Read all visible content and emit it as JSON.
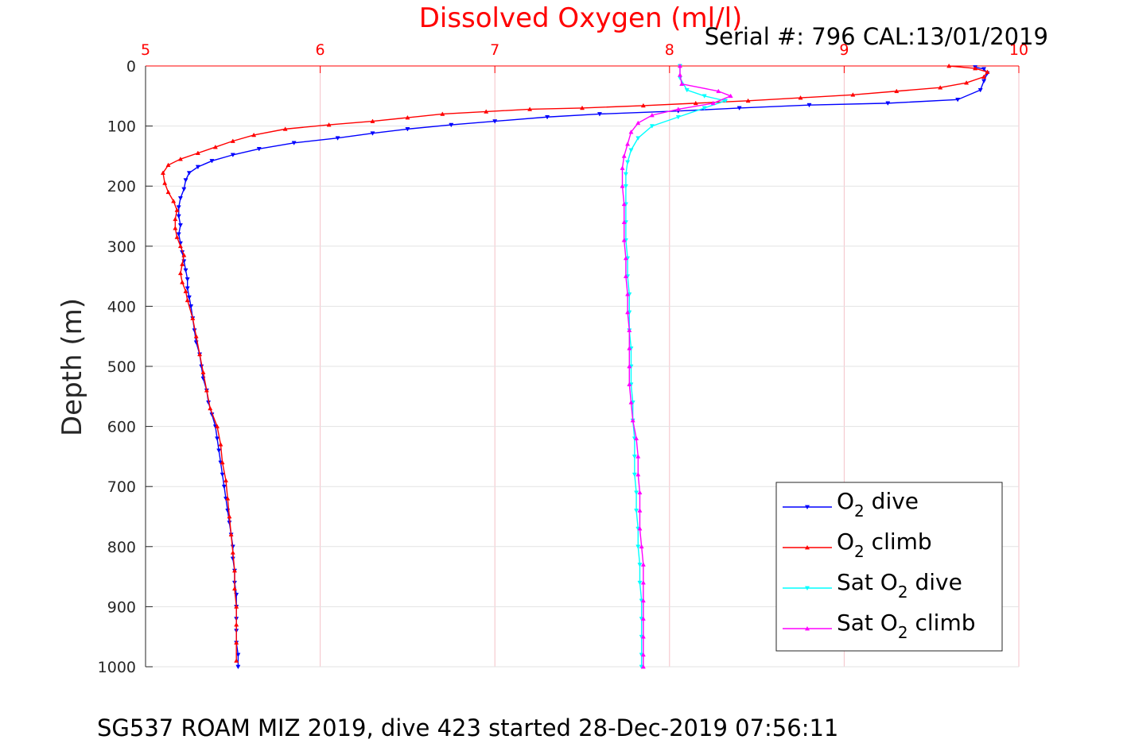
{
  "chart_data": {
    "type": "scatter",
    "title": "Dissolved Oxygen (ml/l)",
    "subtitle": "Serial #: 796  CAL:13/01/2019",
    "ylabel": "Depth (m)",
    "caption": "SG537 ROAM MIZ 2019, dive 423 started 28-Dec-2019 07:56:11",
    "xlim": [
      5,
      10
    ],
    "ylim": [
      0,
      1000
    ],
    "y_reversed": true,
    "x_axis_position": "top",
    "grid": true,
    "legend_position": "bottom-right",
    "xticks": [
      "5",
      "6",
      "7",
      "8",
      "9",
      "10"
    ],
    "yticks": [
      "0",
      "100",
      "200",
      "300",
      "400",
      "500",
      "600",
      "700",
      "800",
      "900",
      "1000"
    ],
    "series": [
      {
        "name": "O2 dive",
        "legend": {
          "base": "O",
          "sub": "2",
          "rest": " dive"
        },
        "color": "#0000ff",
        "marker": "triangle-down",
        "points": [
          [
            9.75,
            2
          ],
          [
            9.8,
            5
          ],
          [
            9.82,
            12
          ],
          [
            9.8,
            25
          ],
          [
            9.78,
            40
          ],
          [
            9.65,
            56
          ],
          [
            9.25,
            62
          ],
          [
            8.8,
            65
          ],
          [
            8.4,
            70
          ],
          [
            8.05,
            75
          ],
          [
            7.6,
            80
          ],
          [
            7.3,
            85
          ],
          [
            7.0,
            92
          ],
          [
            6.75,
            98
          ],
          [
            6.5,
            105
          ],
          [
            6.3,
            112
          ],
          [
            6.1,
            120
          ],
          [
            5.85,
            128
          ],
          [
            5.65,
            138
          ],
          [
            5.5,
            148
          ],
          [
            5.38,
            158
          ],
          [
            5.3,
            168
          ],
          [
            5.25,
            178
          ],
          [
            5.23,
            190
          ],
          [
            5.22,
            205
          ],
          [
            5.2,
            220
          ],
          [
            5.19,
            235
          ],
          [
            5.19,
            250
          ],
          [
            5.2,
            265
          ],
          [
            5.19,
            280
          ],
          [
            5.2,
            295
          ],
          [
            5.21,
            310
          ],
          [
            5.22,
            325
          ],
          [
            5.23,
            340
          ],
          [
            5.24,
            355
          ],
          [
            5.24,
            370
          ],
          [
            5.25,
            385
          ],
          [
            5.26,
            400
          ],
          [
            5.27,
            420
          ],
          [
            5.28,
            440
          ],
          [
            5.29,
            460
          ],
          [
            5.31,
            480
          ],
          [
            5.32,
            500
          ],
          [
            5.33,
            520
          ],
          [
            5.35,
            540
          ],
          [
            5.36,
            560
          ],
          [
            5.38,
            580
          ],
          [
            5.4,
            600
          ],
          [
            5.41,
            620
          ],
          [
            5.42,
            640
          ],
          [
            5.43,
            660
          ],
          [
            5.44,
            680
          ],
          [
            5.45,
            700
          ],
          [
            5.46,
            720
          ],
          [
            5.47,
            740
          ],
          [
            5.48,
            760
          ],
          [
            5.49,
            780
          ],
          [
            5.5,
            800
          ],
          [
            5.5,
            820
          ],
          [
            5.51,
            840
          ],
          [
            5.51,
            860
          ],
          [
            5.52,
            880
          ],
          [
            5.52,
            900
          ],
          [
            5.52,
            920
          ],
          [
            5.52,
            940
          ],
          [
            5.52,
            960
          ],
          [
            5.53,
            980
          ],
          [
            5.53,
            1000
          ]
        ]
      },
      {
        "name": "O2 climb",
        "legend": {
          "base": "O",
          "sub": "2",
          "rest": " climb"
        },
        "color": "#ff0000",
        "marker": "triangle-up",
        "points": [
          [
            9.6,
            0
          ],
          [
            9.75,
            4
          ],
          [
            9.82,
            10
          ],
          [
            9.8,
            18
          ],
          [
            9.7,
            28
          ],
          [
            9.55,
            36
          ],
          [
            9.3,
            42
          ],
          [
            9.05,
            48
          ],
          [
            8.75,
            53
          ],
          [
            8.45,
            58
          ],
          [
            8.15,
            62
          ],
          [
            7.85,
            66
          ],
          [
            7.5,
            70
          ],
          [
            7.2,
            72
          ],
          [
            6.95,
            76
          ],
          [
            6.7,
            80
          ],
          [
            6.5,
            86
          ],
          [
            6.3,
            92
          ],
          [
            6.05,
            98
          ],
          [
            5.8,
            105
          ],
          [
            5.62,
            115
          ],
          [
            5.5,
            125
          ],
          [
            5.4,
            135
          ],
          [
            5.3,
            145
          ],
          [
            5.2,
            155
          ],
          [
            5.13,
            165
          ],
          [
            5.1,
            178
          ],
          [
            5.11,
            195
          ],
          [
            5.13,
            210
          ],
          [
            5.16,
            225
          ],
          [
            5.18,
            240
          ],
          [
            5.17,
            255
          ],
          [
            5.17,
            270
          ],
          [
            5.18,
            285
          ],
          [
            5.2,
            300
          ],
          [
            5.22,
            315
          ],
          [
            5.21,
            330
          ],
          [
            5.2,
            345
          ],
          [
            5.21,
            360
          ],
          [
            5.23,
            375
          ],
          [
            5.24,
            390
          ],
          [
            5.27,
            420
          ],
          [
            5.29,
            450
          ],
          [
            5.31,
            480
          ],
          [
            5.33,
            510
          ],
          [
            5.35,
            540
          ],
          [
            5.37,
            570
          ],
          [
            5.41,
            600
          ],
          [
            5.43,
            630
          ],
          [
            5.44,
            660
          ],
          [
            5.46,
            690
          ],
          [
            5.47,
            720
          ],
          [
            5.48,
            750
          ],
          [
            5.49,
            780
          ],
          [
            5.5,
            810
          ],
          [
            5.51,
            840
          ],
          [
            5.51,
            870
          ],
          [
            5.52,
            900
          ],
          [
            5.52,
            930
          ],
          [
            5.52,
            960
          ],
          [
            5.52,
            990
          ]
        ]
      },
      {
        "name": "Sat O2 dive",
        "legend": {
          "base": "Sat O",
          "sub": "2",
          "rest": " dive"
        },
        "color": "#00ffff",
        "marker": "triangle-down",
        "points": [
          [
            8.06,
            0
          ],
          [
            8.06,
            20
          ],
          [
            8.1,
            40
          ],
          [
            8.2,
            50
          ],
          [
            8.32,
            58
          ],
          [
            8.2,
            70
          ],
          [
            8.05,
            85
          ],
          [
            7.9,
            100
          ],
          [
            7.82,
            120
          ],
          [
            7.78,
            140
          ],
          [
            7.76,
            160
          ],
          [
            7.75,
            180
          ],
          [
            7.75,
            200
          ],
          [
            7.75,
            230
          ],
          [
            7.75,
            260
          ],
          [
            7.75,
            290
          ],
          [
            7.76,
            320
          ],
          [
            7.76,
            350
          ],
          [
            7.77,
            380
          ],
          [
            7.77,
            410
          ],
          [
            7.77,
            440
          ],
          [
            7.78,
            470
          ],
          [
            7.78,
            500
          ],
          [
            7.78,
            530
          ],
          [
            7.79,
            560
          ],
          [
            7.79,
            590
          ],
          [
            7.8,
            620
          ],
          [
            7.8,
            650
          ],
          [
            7.8,
            680
          ],
          [
            7.81,
            710
          ],
          [
            7.81,
            740
          ],
          [
            7.82,
            770
          ],
          [
            7.82,
            800
          ],
          [
            7.83,
            830
          ],
          [
            7.83,
            860
          ],
          [
            7.84,
            890
          ],
          [
            7.84,
            920
          ],
          [
            7.84,
            950
          ],
          [
            7.84,
            980
          ],
          [
            7.84,
            1000
          ]
        ]
      },
      {
        "name": "Sat O2 climb",
        "legend": {
          "base": "Sat O",
          "sub": "2",
          "rest": " climb"
        },
        "color": "#ff00ff",
        "marker": "triangle-up",
        "points": [
          [
            8.06,
            0
          ],
          [
            8.06,
            15
          ],
          [
            8.07,
            30
          ],
          [
            8.28,
            42
          ],
          [
            8.35,
            50
          ],
          [
            8.25,
            62
          ],
          [
            8.05,
            72
          ],
          [
            7.9,
            82
          ],
          [
            7.82,
            95
          ],
          [
            7.78,
            110
          ],
          [
            7.76,
            130
          ],
          [
            7.74,
            150
          ],
          [
            7.73,
            170
          ],
          [
            7.73,
            200
          ],
          [
            7.74,
            230
          ],
          [
            7.74,
            260
          ],
          [
            7.74,
            290
          ],
          [
            7.75,
            320
          ],
          [
            7.75,
            350
          ],
          [
            7.76,
            380
          ],
          [
            7.76,
            410
          ],
          [
            7.77,
            440
          ],
          [
            7.77,
            470
          ],
          [
            7.77,
            500
          ],
          [
            7.77,
            530
          ],
          [
            7.78,
            560
          ],
          [
            7.79,
            590
          ],
          [
            7.81,
            620
          ],
          [
            7.82,
            650
          ],
          [
            7.82,
            680
          ],
          [
            7.83,
            710
          ],
          [
            7.83,
            740
          ],
          [
            7.83,
            770
          ],
          [
            7.84,
            800
          ],
          [
            7.85,
            830
          ],
          [
            7.85,
            860
          ],
          [
            7.85,
            890
          ],
          [
            7.85,
            920
          ],
          [
            7.85,
            950
          ],
          [
            7.85,
            980
          ],
          [
            7.85,
            1000
          ]
        ]
      }
    ]
  }
}
